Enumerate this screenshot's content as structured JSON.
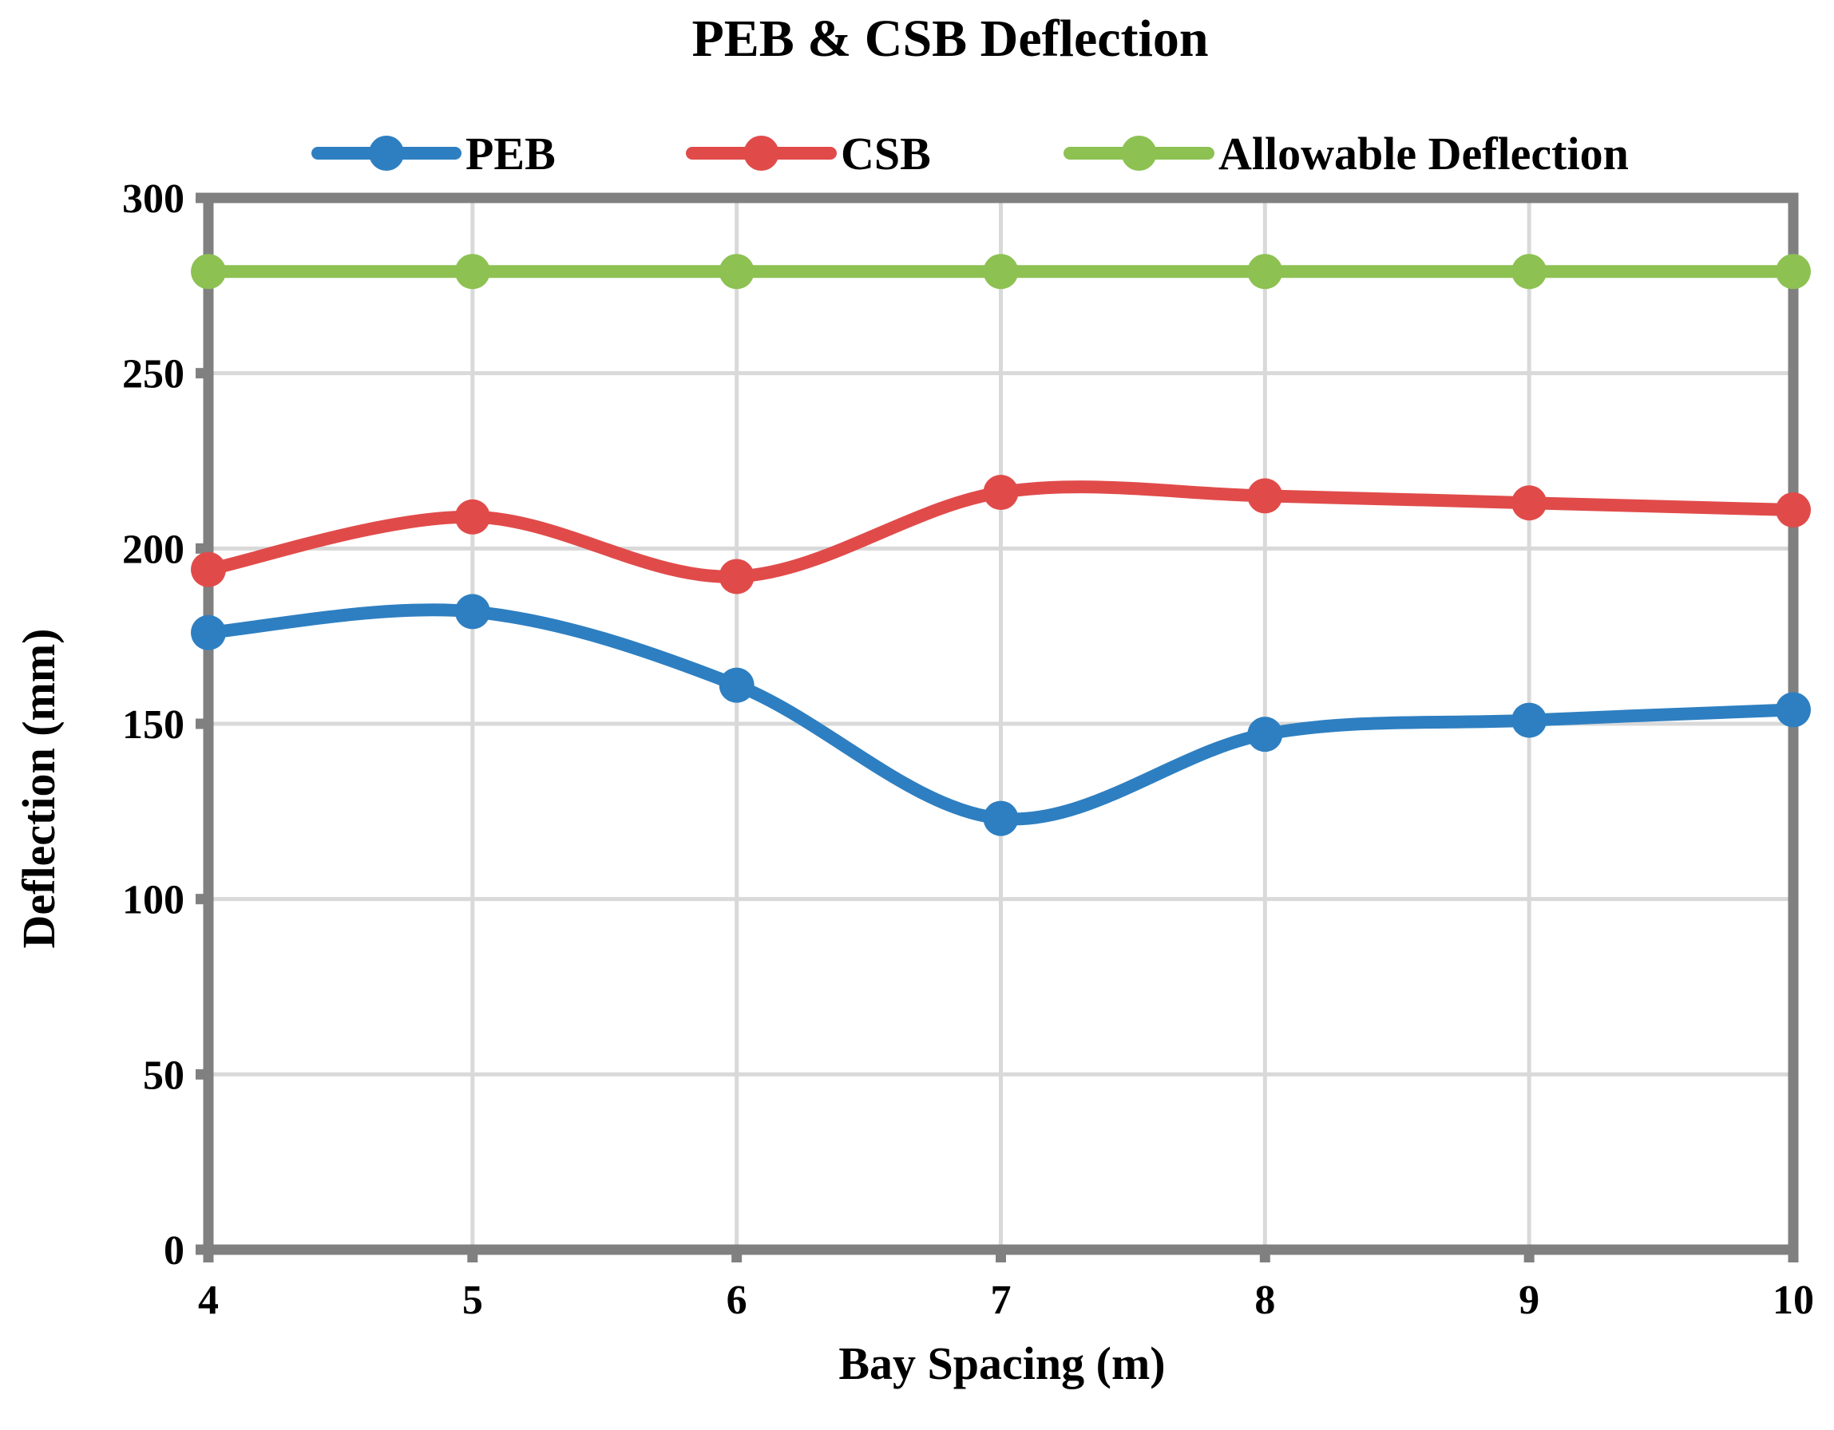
{
  "chart_data": {
    "type": "line",
    "title": "PEB & CSB Deflection",
    "xlabel": "Bay Spacing (m)",
    "ylabel": "Deflection (mm)",
    "x": [
      4,
      5,
      6,
      7,
      8,
      9,
      10
    ],
    "xlim": [
      4,
      10
    ],
    "ylim": [
      0,
      300
    ],
    "yticks": [
      0,
      50,
      100,
      150,
      200,
      250,
      300
    ],
    "grid": true,
    "smooth": true,
    "legend_position": "top",
    "series": [
      {
        "name": "PEB",
        "color": "#2E7FC1",
        "values": [
          176,
          182,
          161,
          123,
          147,
          151,
          154
        ]
      },
      {
        "name": "CSB",
        "color": "#E04B4A",
        "values": [
          194,
          209,
          192,
          216,
          215,
          213,
          211
        ]
      },
      {
        "name": "Allowable Deflection",
        "color": "#8DC152",
        "values": [
          279,
          279,
          279,
          279,
          279,
          279,
          279
        ]
      }
    ]
  }
}
